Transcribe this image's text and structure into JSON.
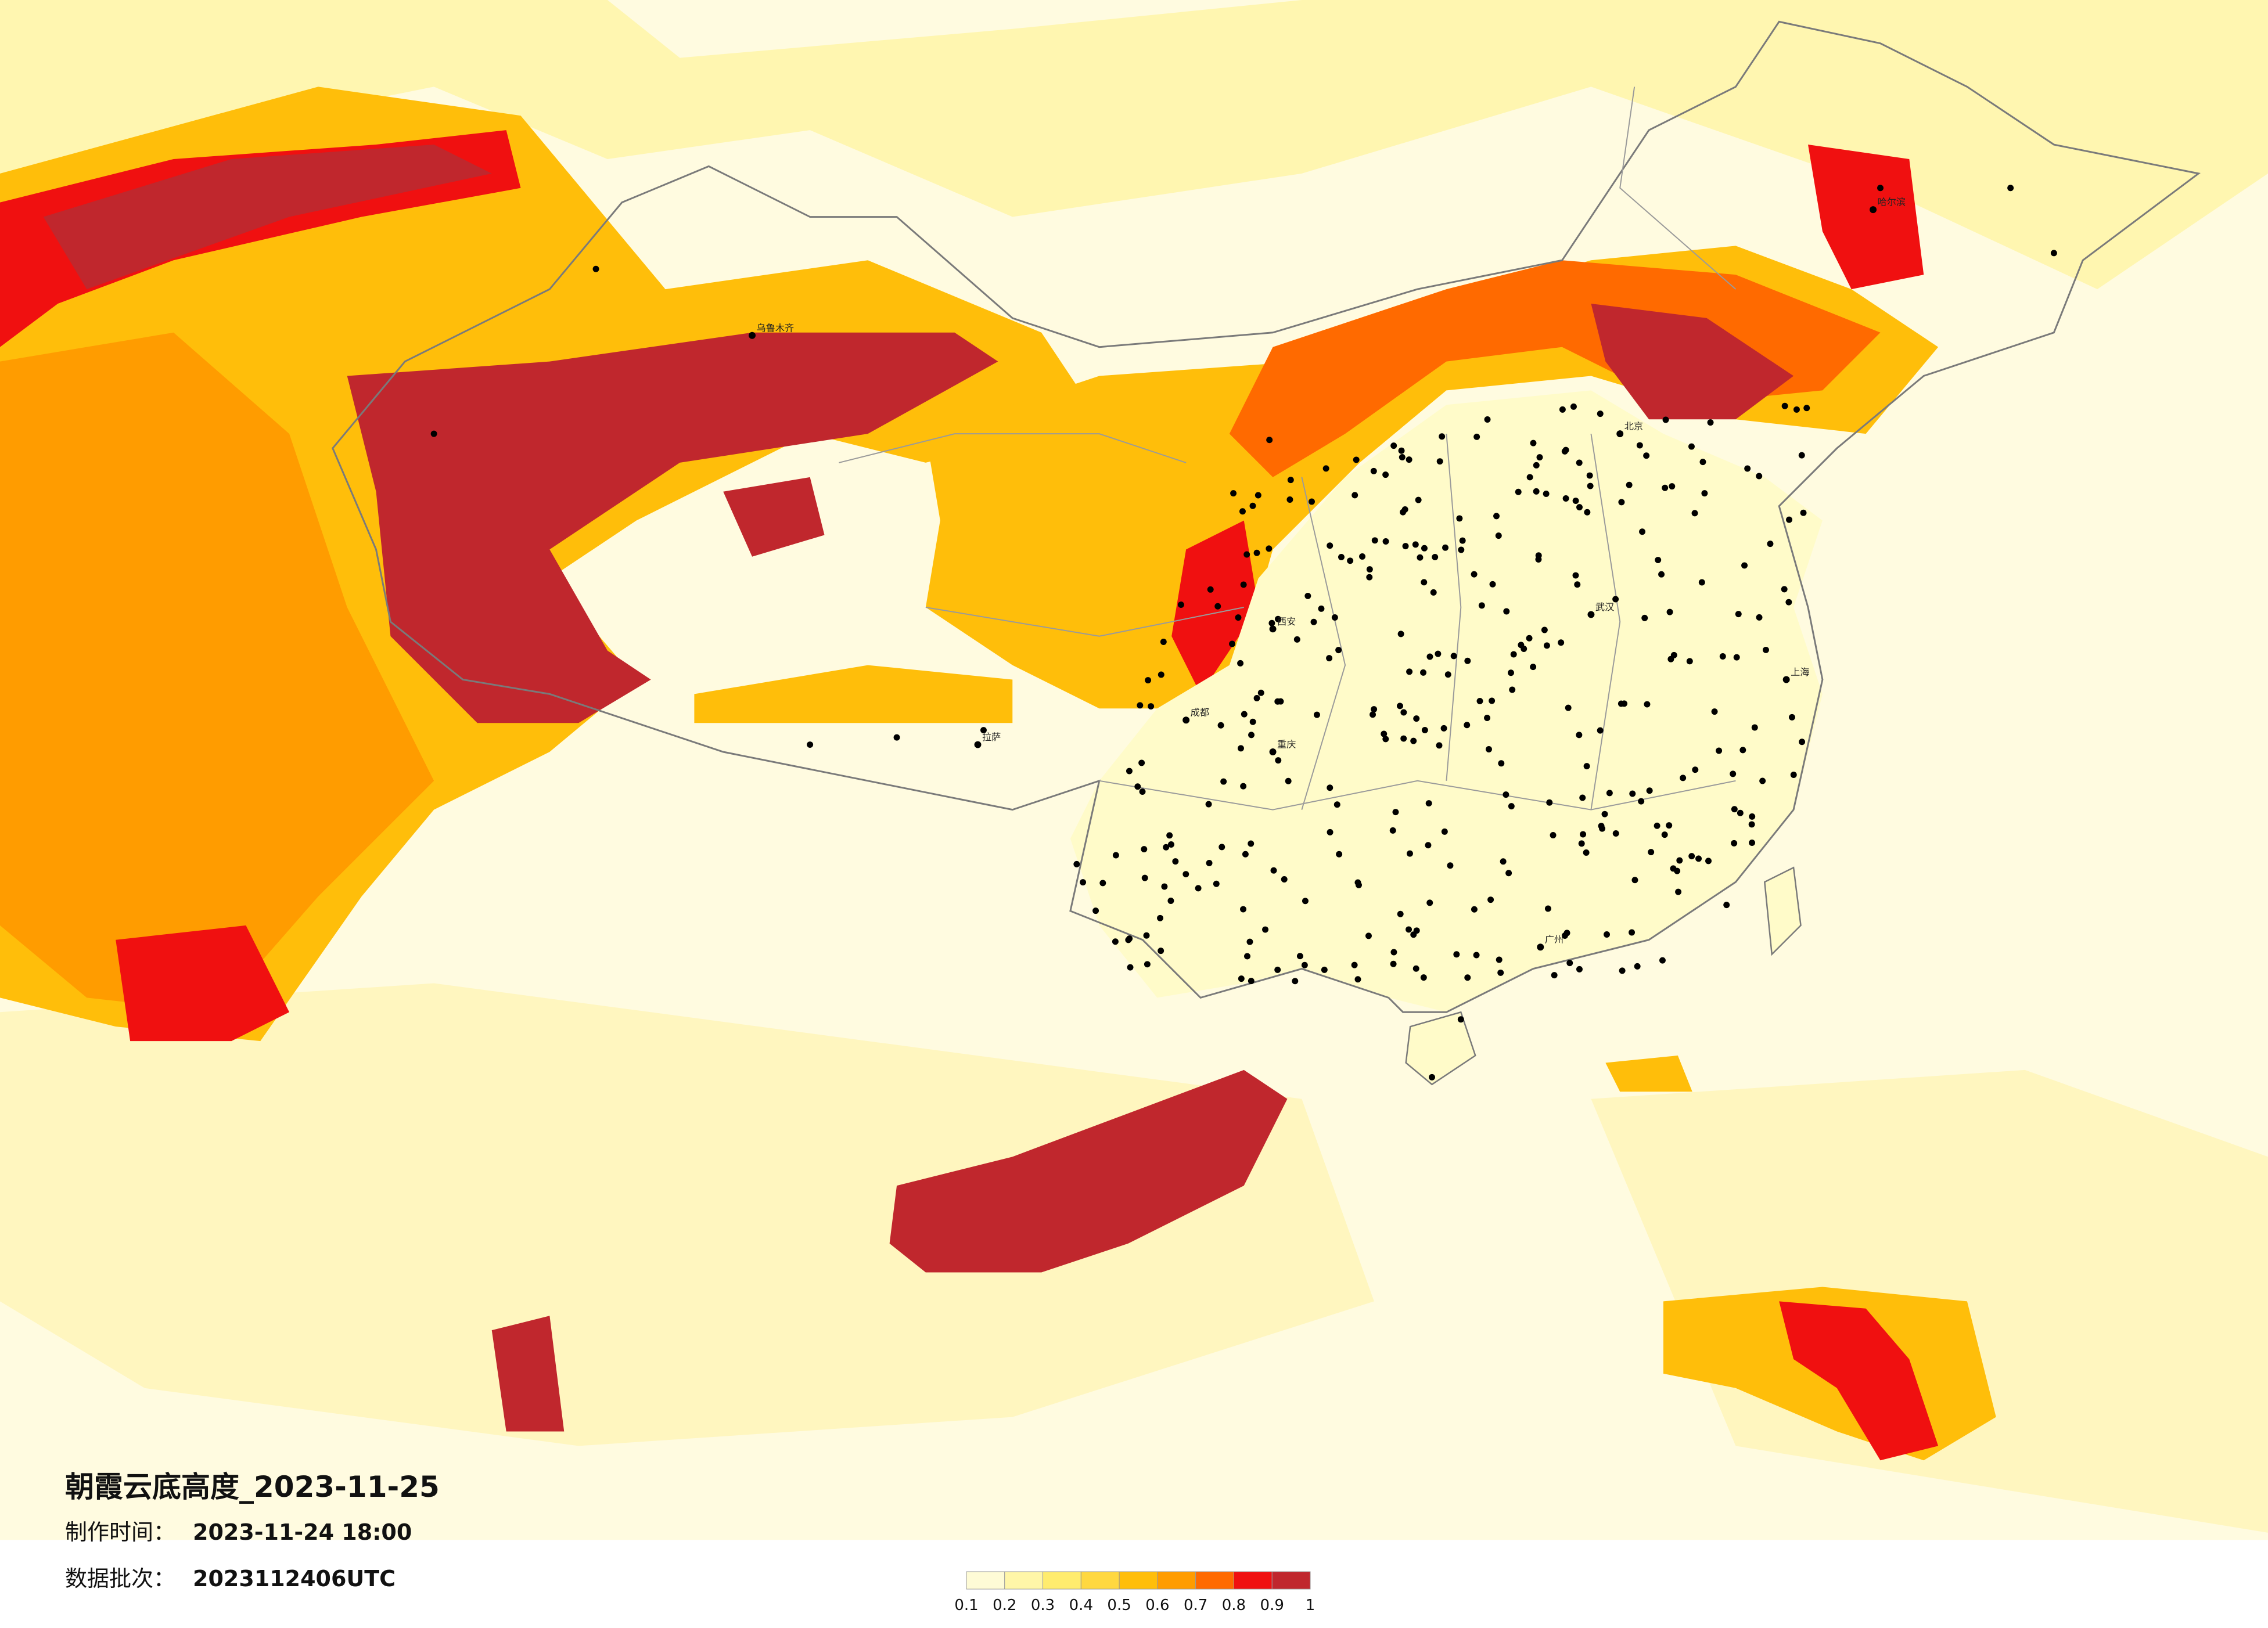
{
  "title": "朝霞云底高度_2023-11-25",
  "production_time": {
    "label": "制作时间：",
    "value": "2023-11-24 18:00"
  },
  "data_batch": {
    "label": "数据批次：",
    "value": "2023112406UTC"
  },
  "legend": {
    "ticks": [
      0.1,
      0.2,
      0.3,
      0.4,
      0.5,
      0.6,
      0.7,
      0.8,
      0.9,
      1
    ],
    "colors": [
      "#fefbd6",
      "#fff6a8",
      "#ffec6e",
      "#ffd840",
      "#ffbe0a",
      "#ff9c00",
      "#ff6a00",
      "#f01010",
      "#c0272d"
    ]
  },
  "cities": [
    "乌鲁木齐",
    "拉萨",
    "成都",
    "重庆",
    "西安",
    "北京",
    "上海",
    "广州",
    "武汉",
    "哈尔滨"
  ]
}
